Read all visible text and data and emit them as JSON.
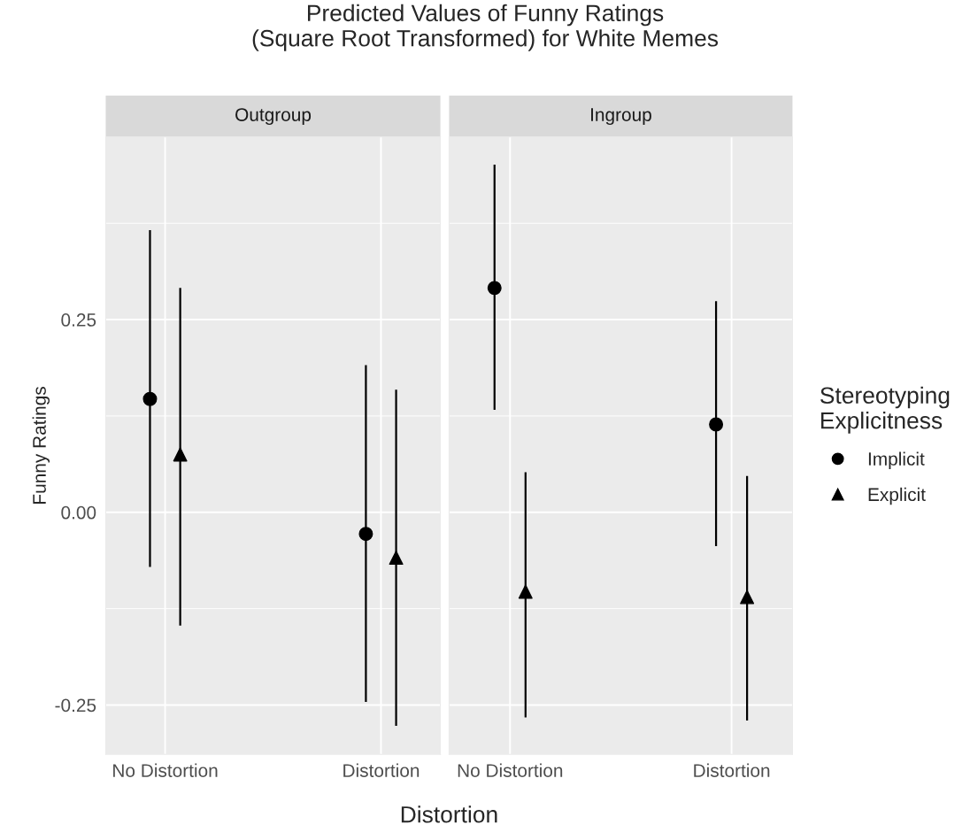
{
  "chart_data": [
    {
      "type": "scatter",
      "title": "Predicted Values of Funny Ratings\n(Square Root Transformed) for White Memes",
      "subtitle": "Outgroup",
      "xlabel": "Distortion",
      "ylabel": "Funny Ratings",
      "categories": [
        "No Distortion",
        "Distortion"
      ],
      "ylim": [
        -0.314,
        0.487
      ],
      "yticks": [
        {
          "value": -0.25,
          "label": "-0.25"
        },
        {
          "value": 0,
          "label": "0.00"
        },
        {
          "value": 0.25,
          "label": "0.25"
        }
      ],
      "grid": true,
      "legend": false,
      "series": [
        {
          "color": "#000000",
          "marker": "circle",
          "values": [
            0.147,
            -0.028
          ],
          "errors": [
            [
              -0.071,
              0.366
            ],
            [
              -0.246,
              0.191
            ]
          ]
        },
        {
          "color": "#000000",
          "marker": "triangle",
          "values": [
            0.075,
            -0.059
          ],
          "errors": [
            [
              -0.147,
              0.291
            ],
            [
              -0.277,
              0.159
            ]
          ]
        }
      ]
    },
    {
      "type": "scatter",
      "subtitle": "Ingroup",
      "legend_title": "Stereotyping\nExplicitness",
      "categories": [
        "No Distortion",
        "Distortion"
      ],
      "ylim": [
        -0.314,
        0.487
      ],
      "yticks": [
        {
          "value": -0.25,
          "label": null
        },
        {
          "value": 0,
          "label": null
        },
        {
          "value": 0.25,
          "label": null
        }
      ],
      "grid": true,
      "legend": "right",
      "tick_labels": "x",
      "series": [
        {
          "name": "Implicit",
          "color": "#000000",
          "marker": "circle",
          "values": [
            0.291,
            0.114
          ],
          "errors": [
            [
              0.133,
              0.451
            ],
            [
              -0.044,
              0.274
            ]
          ]
        },
        {
          "name": "Explicit",
          "color": "#000000",
          "marker": "triangle",
          "values": [
            -0.103,
            -0.11
          ],
          "errors": [
            [
              -0.266,
              0.052
            ],
            [
              -0.27,
              0.047
            ]
          ]
        }
      ]
    }
  ]
}
